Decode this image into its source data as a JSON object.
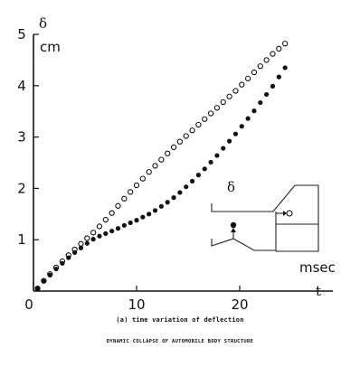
{
  "chart_data": {
    "type": "scatter",
    "y_symbol": "δ",
    "ylabel": "cm",
    "x_symbol": "t",
    "xlabel": "msec",
    "xlim": [
      0,
      28
    ],
    "ylim": [
      0,
      5
    ],
    "x_ticks": [
      0,
      10,
      20
    ],
    "y_ticks": [
      1,
      2,
      3,
      4,
      5
    ],
    "grid": false,
    "legend": "none",
    "series": [
      {
        "marker": "open-circle",
        "x": [
          0.4,
          1.0,
          1.6,
          2.2,
          2.8,
          3.4,
          4.0,
          4.6,
          5.2,
          5.8,
          6.4,
          7.0,
          7.6,
          8.2,
          8.8,
          9.4,
          10.0,
          10.6,
          11.2,
          11.8,
          12.4,
          13.0,
          13.6,
          14.2,
          14.8,
          15.4,
          16.0,
          16.6,
          17.2,
          17.8,
          18.4,
          19.0,
          19.6,
          20.2,
          20.8,
          21.4,
          22.0,
          22.6,
          23.2,
          23.8,
          24.4
        ],
        "y": [
          0.05,
          0.2,
          0.33,
          0.46,
          0.58,
          0.7,
          0.81,
          0.92,
          1.03,
          1.14,
          1.26,
          1.39,
          1.52,
          1.66,
          1.8,
          1.93,
          2.06,
          2.19,
          2.32,
          2.44,
          2.56,
          2.68,
          2.8,
          2.91,
          3.02,
          3.13,
          3.24,
          3.35,
          3.46,
          3.57,
          3.68,
          3.79,
          3.9,
          4.02,
          4.14,
          4.26,
          4.38,
          4.5,
          4.62,
          4.72,
          4.82
        ]
      },
      {
        "marker": "filled-circle",
        "x": [
          0.4,
          1.0,
          1.6,
          2.2,
          2.8,
          3.4,
          4.0,
          4.6,
          5.2,
          5.8,
          6.4,
          7.0,
          7.6,
          8.2,
          8.8,
          9.4,
          10.0,
          10.6,
          11.2,
          11.8,
          12.4,
          13.0,
          13.6,
          14.2,
          14.8,
          15.4,
          16.0,
          16.6,
          17.2,
          17.8,
          18.4,
          19.0,
          19.6,
          20.2,
          20.8,
          21.4,
          22.0,
          22.6,
          23.2,
          23.8,
          24.4
        ],
        "y": [
          0.05,
          0.19,
          0.31,
          0.43,
          0.54,
          0.65,
          0.75,
          0.84,
          0.93,
          1.01,
          1.07,
          1.12,
          1.17,
          1.22,
          1.28,
          1.33,
          1.38,
          1.44,
          1.5,
          1.57,
          1.65,
          1.73,
          1.82,
          1.92,
          2.03,
          2.14,
          2.26,
          2.38,
          2.51,
          2.64,
          2.78,
          2.92,
          3.06,
          3.21,
          3.36,
          3.51,
          3.67,
          3.83,
          3.99,
          4.17,
          4.35
        ]
      }
    ]
  },
  "inset": {
    "symbol": "δ"
  },
  "captions": {
    "figure": "(a) time variation of deflection",
    "title": "DYNAMIC COLLAPSE OF AUTOMOBILE BODY STRUCTURE"
  }
}
